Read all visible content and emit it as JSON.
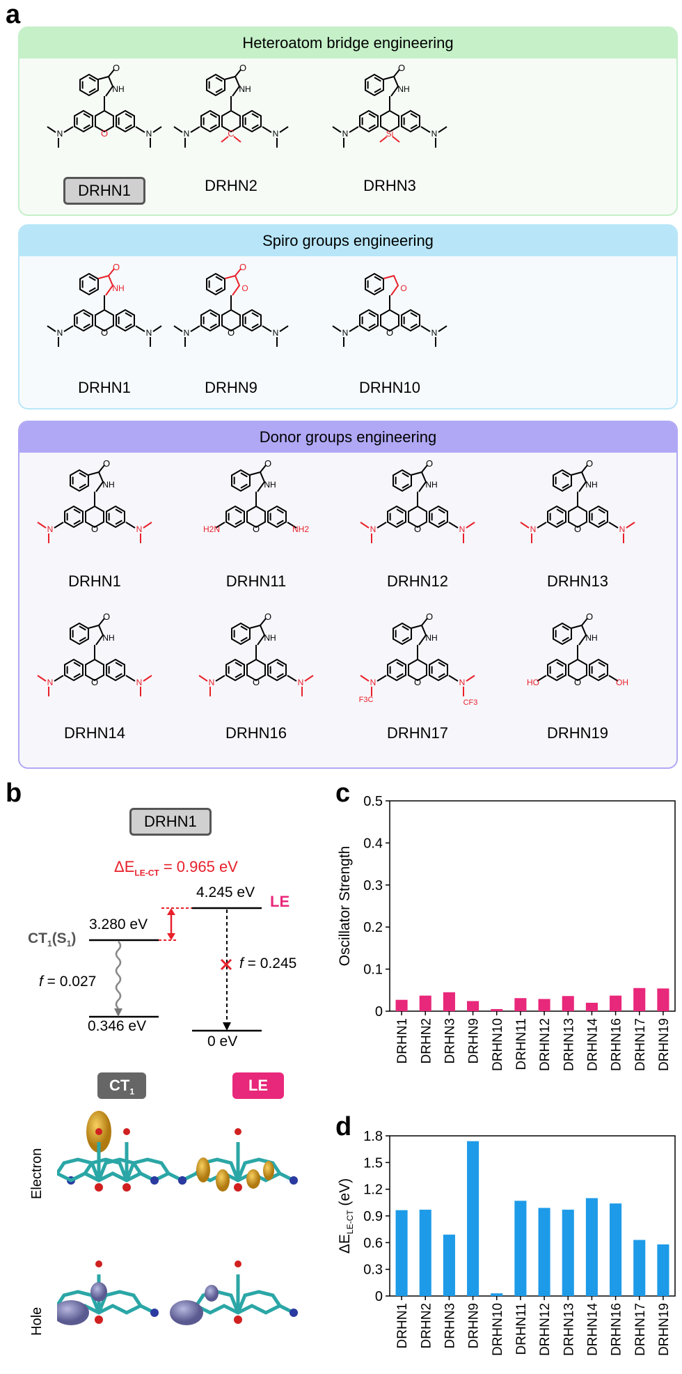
{
  "panels": {
    "a": "a",
    "b": "b",
    "c": "c",
    "d": "d"
  },
  "sections": [
    {
      "title": "Heteroatom bridge engineering",
      "molecules": [
        {
          "label": "DRHN1",
          "bridge": "O",
          "selected": true
        },
        {
          "label": "DRHN2",
          "bridge": "C"
        },
        {
          "label": "DRHN3",
          "bridge": "Si"
        }
      ]
    },
    {
      "title": "Spiro groups engineering",
      "molecules": [
        {
          "label": "DRHN1"
        },
        {
          "label": "DRHN9"
        },
        {
          "label": "DRHN10"
        }
      ]
    },
    {
      "title": "Donor groups engineering",
      "molecules": [
        {
          "label": "DRHN1"
        },
        {
          "label": "DRHN11",
          "donor": "H2N / NH2"
        },
        {
          "label": "DRHN12"
        },
        {
          "label": "DRHN13"
        },
        {
          "label": "DRHN14"
        },
        {
          "label": "DRHN16"
        },
        {
          "label": "DRHN17",
          "donor": "F3C / CF3"
        },
        {
          "label": "DRHN19",
          "donor": "HO / OH"
        }
      ]
    }
  ],
  "atoms": {
    "O": "O",
    "NH": "NH",
    "N": "N",
    "C": "C",
    "Si": "Si",
    "H2N": "H2N",
    "NH2": "NH2",
    "HO": "HO",
    "OH": "OH",
    "F3C": "F3C",
    "CF3": "CF3"
  },
  "energy_diagram": {
    "molecule": "DRHN1",
    "delta_label": "ΔE",
    "delta_sub": "LE-CT",
    "delta_value": " = 0.965 eV",
    "le_energy": "4.245 eV",
    "le_label": "LE",
    "ct_energy": "3.280 eV",
    "ct_label": "CT",
    "ct_sub": "1",
    "ct_suffix": "(S",
    "ct_sub2": "1",
    "ct_end": ")",
    "ct_f_prefix": "f",
    "ct_f": " = 0.027",
    "le_f_prefix": "f",
    "le_f": " = 0.245",
    "ground_ct": "0.346 eV",
    "ground_le": "0 eV"
  },
  "orbitals": {
    "ct_tag": "CT",
    "ct_tag_sub": "1",
    "le_tag": "LE",
    "row1": "Electron",
    "row2": "Hole"
  },
  "colors": {
    "red": "#e8202a",
    "pink": "#e8287a",
    "green": "#c5f0c8",
    "blue": "#b8e6f8",
    "purple": "#b0a8f5",
    "bar_c": "#e8287a",
    "bar_d": "#1e9be8"
  },
  "chart_data": [
    {
      "type": "bar",
      "panel": "c",
      "categories": [
        "DRHN1",
        "DRHN2",
        "DRHN3",
        "DRHN9",
        "DRHN10",
        "DRHN11",
        "DRHN12",
        "DRHN13",
        "DRHN14",
        "DRHN16",
        "DRHN17",
        "DRHN19"
      ],
      "values": [
        0.027,
        0.037,
        0.045,
        0.024,
        0.005,
        0.031,
        0.029,
        0.036,
        0.02,
        0.037,
        0.055,
        0.054
      ],
      "ylabel": "Oscillator Strength",
      "ylim": [
        0,
        0.5
      ],
      "yticks": [
        "0",
        "0.1",
        "0.2",
        "0.3",
        "0.4",
        "0.5"
      ],
      "color": "#e8287a"
    },
    {
      "type": "bar",
      "panel": "d",
      "categories": [
        "DRHN1",
        "DRHN2",
        "DRHN3",
        "DRHN9",
        "DRHN10",
        "DRHN11",
        "DRHN12",
        "DRHN13",
        "DRHN14",
        "DRHN16",
        "DRHN17",
        "DRHN19"
      ],
      "values": [
        0.965,
        0.97,
        0.69,
        1.74,
        0.03,
        1.07,
        0.99,
        0.97,
        1.1,
        1.04,
        0.63,
        0.58
      ],
      "ylabel": "ΔE",
      "ylabel_sub": "LE-CT",
      "ylabel_unit": " (eV)",
      "ylim": [
        0,
        1.8
      ],
      "yticks": [
        "0",
        "0.3",
        "0.6",
        "0.9",
        "1.2",
        "1.5",
        "1.8"
      ],
      "color": "#1e9be8"
    }
  ]
}
